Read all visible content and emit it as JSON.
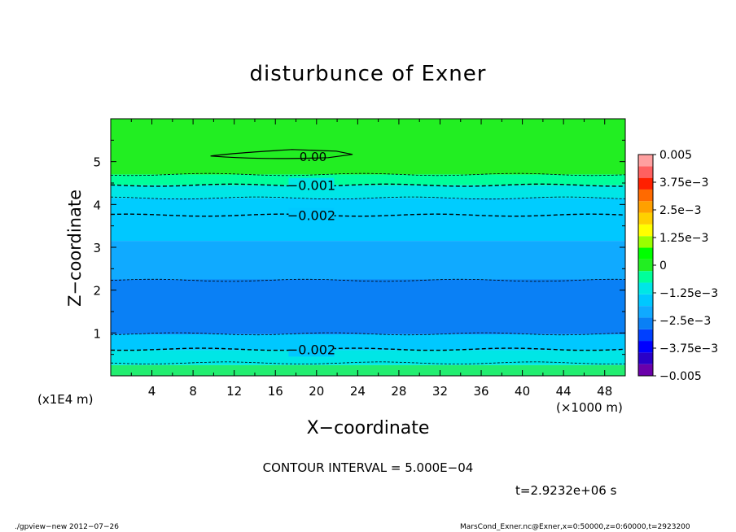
{
  "chart_data": {
    "type": "heatmap",
    "title": "disturbunce of Exner",
    "xlabel": "X−coordinate",
    "ylabel": "Z−coordinate",
    "x_unit": "(×1000 m)",
    "y_unit": "(x1E4 m)",
    "xlim": [
      0,
      50
    ],
    "ylim": [
      0,
      6
    ],
    "x_ticks": [
      4,
      8,
      12,
      16,
      20,
      24,
      28,
      32,
      36,
      40,
      44,
      48
    ],
    "y_ticks": [
      1,
      2,
      3,
      4,
      5
    ],
    "colorbar": {
      "range": [
        -0.005,
        0.005
      ],
      "levels": [
        -0.005,
        -0.00375,
        -0.0025,
        -0.00125,
        0,
        0.00125,
        0.0025,
        0.00375,
        0.005
      ],
      "labels": [
        "0.005",
        "3.75e−3",
        "2.5e−3",
        "1.25e−3",
        "0",
        "−1.25e−3",
        "−2.5e−3",
        "−3.75e−3",
        "−0.005"
      ],
      "colors": [
        "#6a00aa",
        "#2a00c8",
        "#0000ff",
        "#0040ff",
        "#0a80f5",
        "#10aaff",
        "#00c8ff",
        "#00e6e6",
        "#00ff9a",
        "#22ee22",
        "#00ff00",
        "#9aff00",
        "#ffff00",
        "#ffd000",
        "#ffa000",
        "#ff6a00",
        "#ff2000",
        "#ff6060",
        "#ffa0a0"
      ]
    },
    "bands": [
      {
        "z0": 0.0,
        "z1": 0.25,
        "value": -0.00075,
        "color": "#22ee70"
      },
      {
        "z0": 0.25,
        "z1": 0.6,
        "value": -0.00125,
        "color": "#00e6e6"
      },
      {
        "z0": 0.6,
        "z1": 0.97,
        "value": -0.002,
        "color": "#00c8ff"
      },
      {
        "z0": 0.97,
        "z1": 2.25,
        "value": -0.0035,
        "color": "#0a80f5"
      },
      {
        "z0": 2.25,
        "z1": 3.15,
        "value": -0.003,
        "color": "#10aaff"
      },
      {
        "z0": 3.15,
        "z1": 3.75,
        "value": -0.0022,
        "color": "#00c8ff"
      },
      {
        "z0": 3.75,
        "z1": 4.15,
        "value": -0.0018,
        "color": "#00ccff"
      },
      {
        "z0": 4.15,
        "z1": 4.45,
        "value": -0.00125,
        "color": "#00e6e6"
      },
      {
        "z0": 4.45,
        "z1": 4.7,
        "value": -0.0008,
        "color": "#00ff9a"
      },
      {
        "z0": 4.7,
        "z1": 6.0,
        "value": 0.0,
        "color": "#22ee22"
      }
    ],
    "contours": [
      {
        "z": 0.3,
        "label": "",
        "dashed": true,
        "bold": false
      },
      {
        "z": 0.62,
        "label": "−0.002",
        "dashed": true,
        "bold": true,
        "label_x": 19.5
      },
      {
        "z": 0.98,
        "label": "",
        "dashed": true,
        "bold": false
      },
      {
        "z": 2.23,
        "label": "",
        "dashed": true,
        "bold": false
      },
      {
        "z": 3.75,
        "label": "−0.002",
        "dashed": true,
        "bold": true,
        "label_x": 19.5
      },
      {
        "z": 4.15,
        "label": "",
        "dashed": true,
        "bold": false
      },
      {
        "z": 4.45,
        "label": "−0.001",
        "dashed": true,
        "bold": true,
        "label_x": 19.5
      },
      {
        "z": 4.7,
        "label": "",
        "dashed": true,
        "bold": false
      }
    ],
    "zero_contour": {
      "label": "0.00",
      "label_x": 19.5,
      "z": 5.13,
      "x_range": [
        9.7,
        23.5
      ]
    }
  },
  "contour_interval": "CONTOUR INTERVAL = 5.000E−04",
  "time_label": "t=2.9232e+06 s",
  "footer_left": "./gpview−new  2012−07−26",
  "footer_right": "MarsCond_Exner.nc@Exner,x=0:50000,z=0:60000,t=2923200"
}
